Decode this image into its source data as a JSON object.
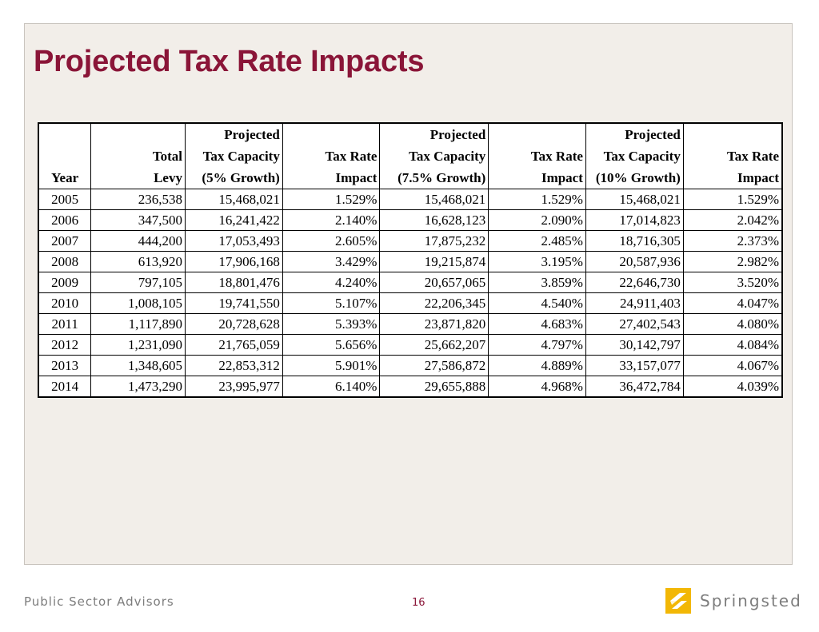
{
  "slide": {
    "title": "Projected Tax Rate Impacts"
  },
  "table": {
    "headers": [
      [
        "",
        "",
        "Year"
      ],
      [
        "",
        "Total",
        "Levy"
      ],
      [
        "Projected",
        "Tax Capacity",
        "(5% Growth)"
      ],
      [
        "",
        "Tax Rate",
        "Impact"
      ],
      [
        "Projected",
        "Tax Capacity",
        "(7.5% Growth)"
      ],
      [
        "",
        "Tax Rate",
        "Impact"
      ],
      [
        "Projected",
        "Tax Capacity",
        "(10% Growth)"
      ],
      [
        "",
        "Tax Rate",
        "Impact"
      ]
    ],
    "rows": [
      [
        "2005",
        "236,538",
        "15,468,021",
        "1.529%",
        "15,468,021",
        "1.529%",
        "15,468,021",
        "1.529%"
      ],
      [
        "2006",
        "347,500",
        "16,241,422",
        "2.140%",
        "16,628,123",
        "2.090%",
        "17,014,823",
        "2.042%"
      ],
      [
        "2007",
        "444,200",
        "17,053,493",
        "2.605%",
        "17,875,232",
        "2.485%",
        "18,716,305",
        "2.373%"
      ],
      [
        "2008",
        "613,920",
        "17,906,168",
        "3.429%",
        "19,215,874",
        "3.195%",
        "20,587,936",
        "2.982%"
      ],
      [
        "2009",
        "797,105",
        "18,801,476",
        "4.240%",
        "20,657,065",
        "3.859%",
        "22,646,730",
        "3.520%"
      ],
      [
        "2010",
        "1,008,105",
        "19,741,550",
        "5.107%",
        "22,206,345",
        "4.540%",
        "24,911,403",
        "4.047%"
      ],
      [
        "2011",
        "1,117,890",
        "20,728,628",
        "5.393%",
        "23,871,820",
        "4.683%",
        "27,402,543",
        "4.080%"
      ],
      [
        "2012",
        "1,231,090",
        "21,765,059",
        "5.656%",
        "25,662,207",
        "4.797%",
        "30,142,797",
        "4.084%"
      ],
      [
        "2013",
        "1,348,605",
        "22,853,312",
        "5.901%",
        "27,586,872",
        "4.889%",
        "33,157,077",
        "4.067%"
      ],
      [
        "2014",
        "1,473,290",
        "23,995,977",
        "6.140%",
        "29,655,888",
        "4.968%",
        "36,472,784",
        "4.039%"
      ]
    ]
  },
  "footer": {
    "org": "Public Sector Advisors",
    "page_number": "16",
    "logo_text": "Springsted",
    "logo_icon": "springsted-logo-icon"
  },
  "colors": {
    "title": "#8a1538",
    "panel_bg": "#f2eee9",
    "logo_accent": "#f2b705",
    "footer_text": "#7d7d7d"
  }
}
